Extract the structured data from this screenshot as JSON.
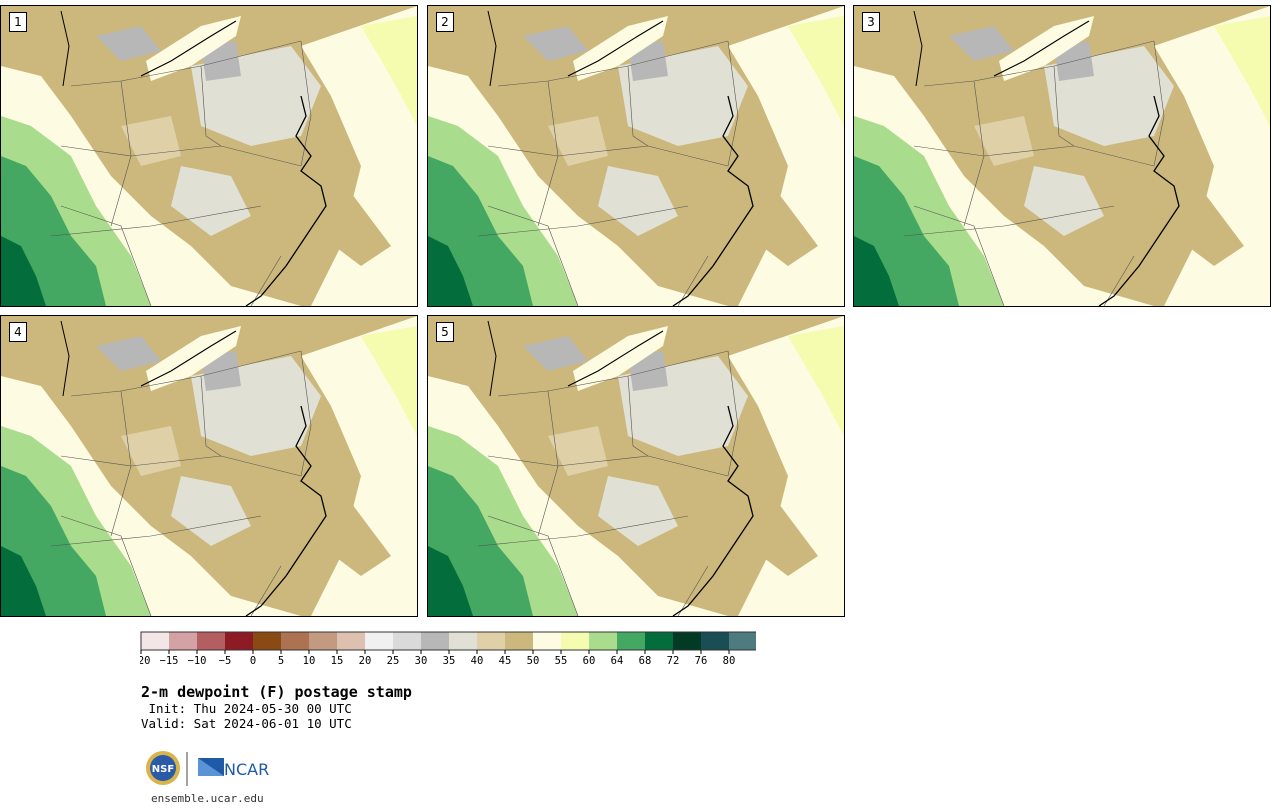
{
  "panels": [
    {
      "label": "1"
    },
    {
      "label": "2"
    },
    {
      "label": "3"
    },
    {
      "label": "4"
    },
    {
      "label": "5"
    }
  ],
  "colorbar": {
    "colors": [
      "#f3e6e6",
      "#d4a2a5",
      "#b45e62",
      "#8e1b24",
      "#8a4a14",
      "#ac7252",
      "#c39a80",
      "#dec0b0",
      "#f1f1f1",
      "#dadada",
      "#b7b7b7",
      "#e1e0d5",
      "#e0d0a8",
      "#ccb87c",
      "#fdfbe1",
      "#f5fcb0",
      "#a9dc8c",
      "#44a862",
      "#046d3c",
      "#023a26",
      "#1a4d54",
      "#4d7b80"
    ],
    "tick_labels": [
      "−20",
      "−15",
      "−10",
      "−5",
      "0",
      "5",
      "10",
      "15",
      "20",
      "25",
      "30",
      "35",
      "40",
      "45",
      "50",
      "55",
      "60",
      "64",
      "68",
      "72",
      "76",
      "80"
    ]
  },
  "title": "2-m dewpoint (F) postage stamp",
  "init": " Init: Thu 2024-05-30 00 UTC",
  "valid": "Valid: Sat 2024-06-01 10 UTC",
  "logos": {
    "nsf": "NSF",
    "ncar": "NCAR"
  },
  "site": "ensemble.ucar.edu"
}
